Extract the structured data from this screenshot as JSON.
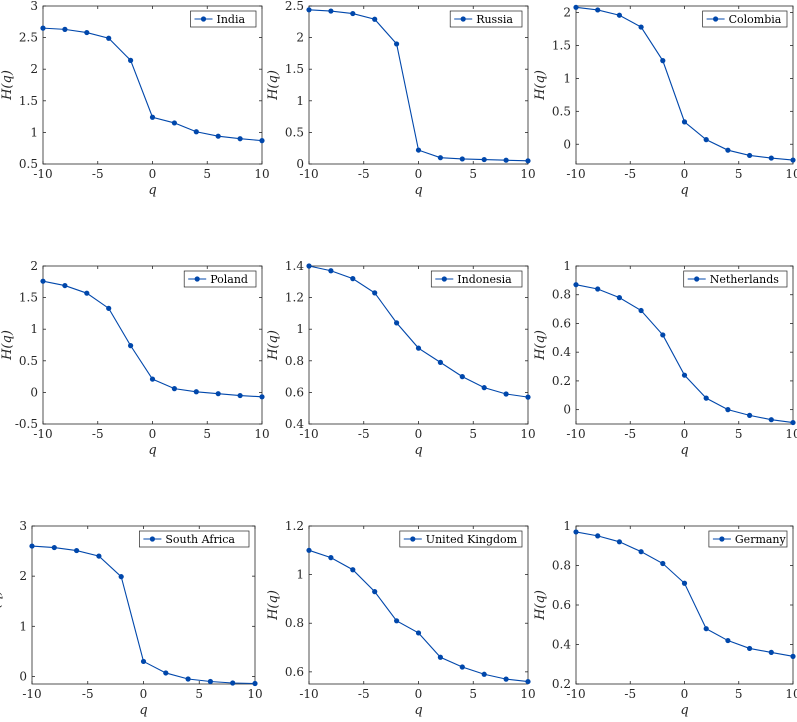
{
  "chart_data": [
    {
      "type": "line",
      "xlabel": "q",
      "ylabel": "H(q)",
      "xlim": [
        -10,
        10
      ],
      "ylim": [
        0.5,
        3
      ],
      "xticks": [
        "-10",
        "-5",
        "0",
        "5",
        "10"
      ],
      "yticks": [
        "0.5",
        "1",
        "1.5",
        "2",
        "2.5",
        "3"
      ],
      "ytick_values": [
        0.5,
        1,
        1.5,
        2,
        2.5,
        3
      ],
      "legend_position": "top-right",
      "series": [
        {
          "name": "India",
          "color": "#0047AB",
          "x": [
            -10,
            -8,
            -6,
            -4,
            -2,
            0,
            2,
            4,
            6,
            8,
            10
          ],
          "values": [
            2.65,
            2.63,
            2.58,
            2.49,
            2.14,
            1.24,
            1.15,
            1.01,
            0.94,
            0.9,
            0.87
          ]
        }
      ]
    },
    {
      "type": "line",
      "xlabel": "q",
      "ylabel": "H(q)",
      "xlim": [
        -10,
        10
      ],
      "ylim": [
        0,
        2.5
      ],
      "xticks": [
        "-10",
        "-5",
        "0",
        "5",
        "10"
      ],
      "yticks": [
        "0",
        "0.5",
        "1",
        "1.5",
        "2",
        "2.5"
      ],
      "ytick_values": [
        0,
        0.5,
        1,
        1.5,
        2,
        2.5
      ],
      "legend_position": "top-right",
      "series": [
        {
          "name": "Russia",
          "color": "#0047AB",
          "x": [
            -10,
            -8,
            -6,
            -4,
            -2,
            0,
            2,
            4,
            6,
            8,
            10
          ],
          "values": [
            2.44,
            2.42,
            2.38,
            2.29,
            1.9,
            0.22,
            0.1,
            0.08,
            0.07,
            0.06,
            0.05
          ]
        }
      ]
    },
    {
      "type": "line",
      "xlabel": "q",
      "ylabel": "H(q)",
      "xlim": [
        -10,
        10
      ],
      "ylim": [
        -0.3,
        2.1
      ],
      "xticks": [
        "-10",
        "-5",
        "0",
        "5",
        "10"
      ],
      "yticks": [
        "0",
        "0.5",
        "1",
        "1.5",
        "2"
      ],
      "ytick_values": [
        0,
        0.5,
        1,
        1.5,
        2
      ],
      "legend_position": "top-right",
      "series": [
        {
          "name": "Colombia",
          "color": "#0047AB",
          "x": [
            -10,
            -8,
            -6,
            -4,
            -2,
            0,
            2,
            4,
            6,
            8,
            10
          ],
          "values": [
            2.08,
            2.04,
            1.96,
            1.78,
            1.27,
            0.34,
            0.07,
            -0.09,
            -0.17,
            -0.21,
            -0.24
          ]
        }
      ]
    },
    {
      "type": "line",
      "xlabel": "q",
      "ylabel": "H(q)",
      "xlim": [
        -10,
        10
      ],
      "ylim": [
        -0.5,
        2
      ],
      "xticks": [
        "-10",
        "-5",
        "0",
        "5",
        "10"
      ],
      "yticks": [
        "-0.5",
        "0",
        "0.5",
        "1",
        "1.5",
        "2"
      ],
      "ytick_values": [
        -0.5,
        0,
        0.5,
        1,
        1.5,
        2
      ],
      "legend_position": "top-right",
      "series": [
        {
          "name": "Poland",
          "color": "#0047AB",
          "x": [
            -10,
            -8,
            -6,
            -4,
            -2,
            0,
            2,
            4,
            6,
            8,
            10
          ],
          "values": [
            1.76,
            1.69,
            1.57,
            1.33,
            0.74,
            0.21,
            0.06,
            0.01,
            -0.02,
            -0.05,
            -0.07
          ]
        }
      ]
    },
    {
      "type": "line",
      "xlabel": "q",
      "ylabel": "H(q)",
      "xlim": [
        -10,
        10
      ],
      "ylim": [
        0.4,
        1.4
      ],
      "xticks": [
        "-10",
        "-5",
        "0",
        "5",
        "10"
      ],
      "yticks": [
        "0.4",
        "0.6",
        "0.8",
        "1",
        "1.2",
        "1.4"
      ],
      "ytick_values": [
        0.4,
        0.6,
        0.8,
        1,
        1.2,
        1.4
      ],
      "legend_position": "top-right",
      "series": [
        {
          "name": "Indonesia",
          "color": "#0047AB",
          "x": [
            -10,
            -8,
            -6,
            -4,
            -2,
            0,
            2,
            4,
            6,
            8,
            10
          ],
          "values": [
            1.4,
            1.37,
            1.32,
            1.23,
            1.04,
            0.88,
            0.79,
            0.7,
            0.63,
            0.59,
            0.57
          ]
        }
      ]
    },
    {
      "type": "line",
      "xlabel": "q",
      "ylabel": "H(q)",
      "xlim": [
        -10,
        10
      ],
      "ylim": [
        -0.1,
        1
      ],
      "xticks": [
        "-10",
        "-5",
        "0",
        "5",
        "10"
      ],
      "yticks": [
        "0",
        "0.2",
        "0.4",
        "0.6",
        "0.8",
        "1"
      ],
      "ytick_values": [
        0,
        0.2,
        0.4,
        0.6,
        0.8,
        1
      ],
      "legend_position": "top-right",
      "series": [
        {
          "name": "Netherlands",
          "color": "#0047AB",
          "x": [
            -10,
            -8,
            -6,
            -4,
            -2,
            0,
            2,
            4,
            6,
            8,
            10
          ],
          "values": [
            0.87,
            0.84,
            0.78,
            0.69,
            0.52,
            0.24,
            0.08,
            0.0,
            -0.04,
            -0.07,
            -0.09
          ]
        }
      ]
    },
    {
      "type": "line",
      "xlabel": "q",
      "ylabel": "H(q)",
      "xlim": [
        -10,
        10
      ],
      "ylim": [
        -0.15,
        3
      ],
      "xticks": [
        "-10",
        "-5",
        "0",
        "5",
        "10"
      ],
      "yticks": [
        "0",
        "1",
        "2",
        "3"
      ],
      "ytick_values": [
        0,
        1,
        2,
        3
      ],
      "legend_position": "top-right",
      "series": [
        {
          "name": "South Africa",
          "color": "#0047AB",
          "x": [
            -10,
            -8,
            -6,
            -4,
            -2,
            0,
            2,
            4,
            6,
            8,
            10
          ],
          "values": [
            2.6,
            2.57,
            2.51,
            2.4,
            1.99,
            0.3,
            0.07,
            -0.05,
            -0.1,
            -0.13,
            -0.14
          ]
        }
      ]
    },
    {
      "type": "line",
      "xlabel": "q",
      "ylabel": "H(q)",
      "xlim": [
        -10,
        10
      ],
      "ylim": [
        0.55,
        1.2
      ],
      "xticks": [
        "-10",
        "-5",
        "0",
        "5",
        "10"
      ],
      "yticks": [
        "0.6",
        "0.8",
        "1",
        "1.2"
      ],
      "ytick_values": [
        0.6,
        0.8,
        1,
        1.2
      ],
      "legend_position": "top-right",
      "series": [
        {
          "name": "United Kingdom",
          "color": "#0047AB",
          "x": [
            -10,
            -8,
            -6,
            -4,
            -2,
            0,
            2,
            4,
            6,
            8,
            10
          ],
          "values": [
            1.1,
            1.07,
            1.02,
            0.93,
            0.81,
            0.76,
            0.66,
            0.62,
            0.59,
            0.57,
            0.56
          ]
        }
      ]
    },
    {
      "type": "line",
      "xlabel": "q",
      "ylabel": "H(q)",
      "xlim": [
        -10,
        10
      ],
      "ylim": [
        0.2,
        1
      ],
      "xticks": [
        "-10",
        "-5",
        "0",
        "5",
        "10"
      ],
      "yticks": [
        "0.2",
        "0.4",
        "0.6",
        "0.8",
        "1"
      ],
      "ytick_values": [
        0.2,
        0.4,
        0.6,
        0.8,
        1
      ],
      "legend_position": "top-right",
      "series": [
        {
          "name": "Germany",
          "color": "#0047AB",
          "x": [
            -10,
            -8,
            -6,
            -4,
            -2,
            0,
            2,
            4,
            6,
            8,
            10
          ],
          "values": [
            0.97,
            0.95,
            0.92,
            0.87,
            0.81,
            0.71,
            0.48,
            0.42,
            0.38,
            0.36,
            0.34
          ]
        }
      ]
    }
  ]
}
